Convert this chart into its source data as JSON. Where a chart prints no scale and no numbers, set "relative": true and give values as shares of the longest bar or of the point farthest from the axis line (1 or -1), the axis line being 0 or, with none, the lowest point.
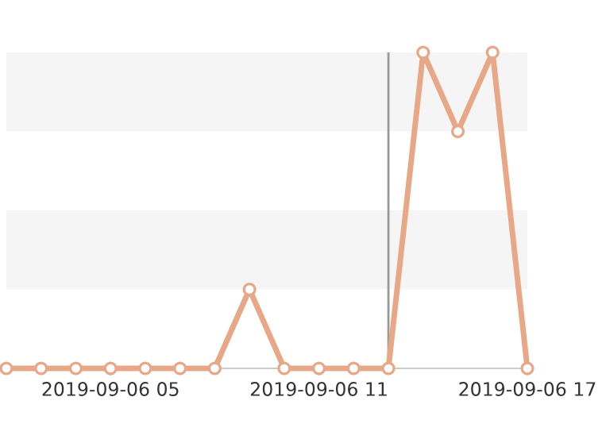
{
  "chart_data": {
    "type": "line",
    "relative": true,
    "x": [
      "2019-09-06T02:00",
      "2019-09-06T03:00",
      "2019-09-06T04:00",
      "2019-09-06T05:00",
      "2019-09-06T06:00",
      "2019-09-06T07:00",
      "2019-09-06T08:00",
      "2019-09-06T09:00",
      "2019-09-06T10:00",
      "2019-09-06T11:00",
      "2019-09-06T12:00",
      "2019-09-06T13:00",
      "2019-09-06T14:00",
      "2019-09-06T15:00",
      "2019-09-06T16:00",
      "2019-09-06T17:00"
    ],
    "series": [
      {
        "color": "#e8a888",
        "values": [
          0,
          0,
          0,
          0,
          0,
          0,
          0,
          0.25,
          0,
          0,
          0,
          0,
          1,
          0.75,
          1,
          0
        ]
      }
    ],
    "xlim": [
      "2019-09-06T02:00",
      "2019-09-06T17:00"
    ],
    "xticks": [
      {
        "value": "2019-09-06T05:00",
        "label": "2019-09-06 05"
      },
      {
        "value": "2019-09-06T11:00",
        "label": "2019-09-06 11"
      },
      {
        "value": "2019-09-06T17:00",
        "label": "2019-09-06 17"
      }
    ],
    "bands": [
      {
        "axis": "y",
        "from": 0.25,
        "to": 0.5,
        "color": "#f5f5f5"
      },
      {
        "axis": "y",
        "from": 0.75,
        "to": 1,
        "color": "#f5f5f5"
      }
    ],
    "ref_lines": [
      {
        "axis": "x",
        "value": "2019-09-06T13:00",
        "color": "#999999"
      }
    ],
    "marker": "circle",
    "line_style": "solid",
    "grid": false,
    "legend": false
  }
}
